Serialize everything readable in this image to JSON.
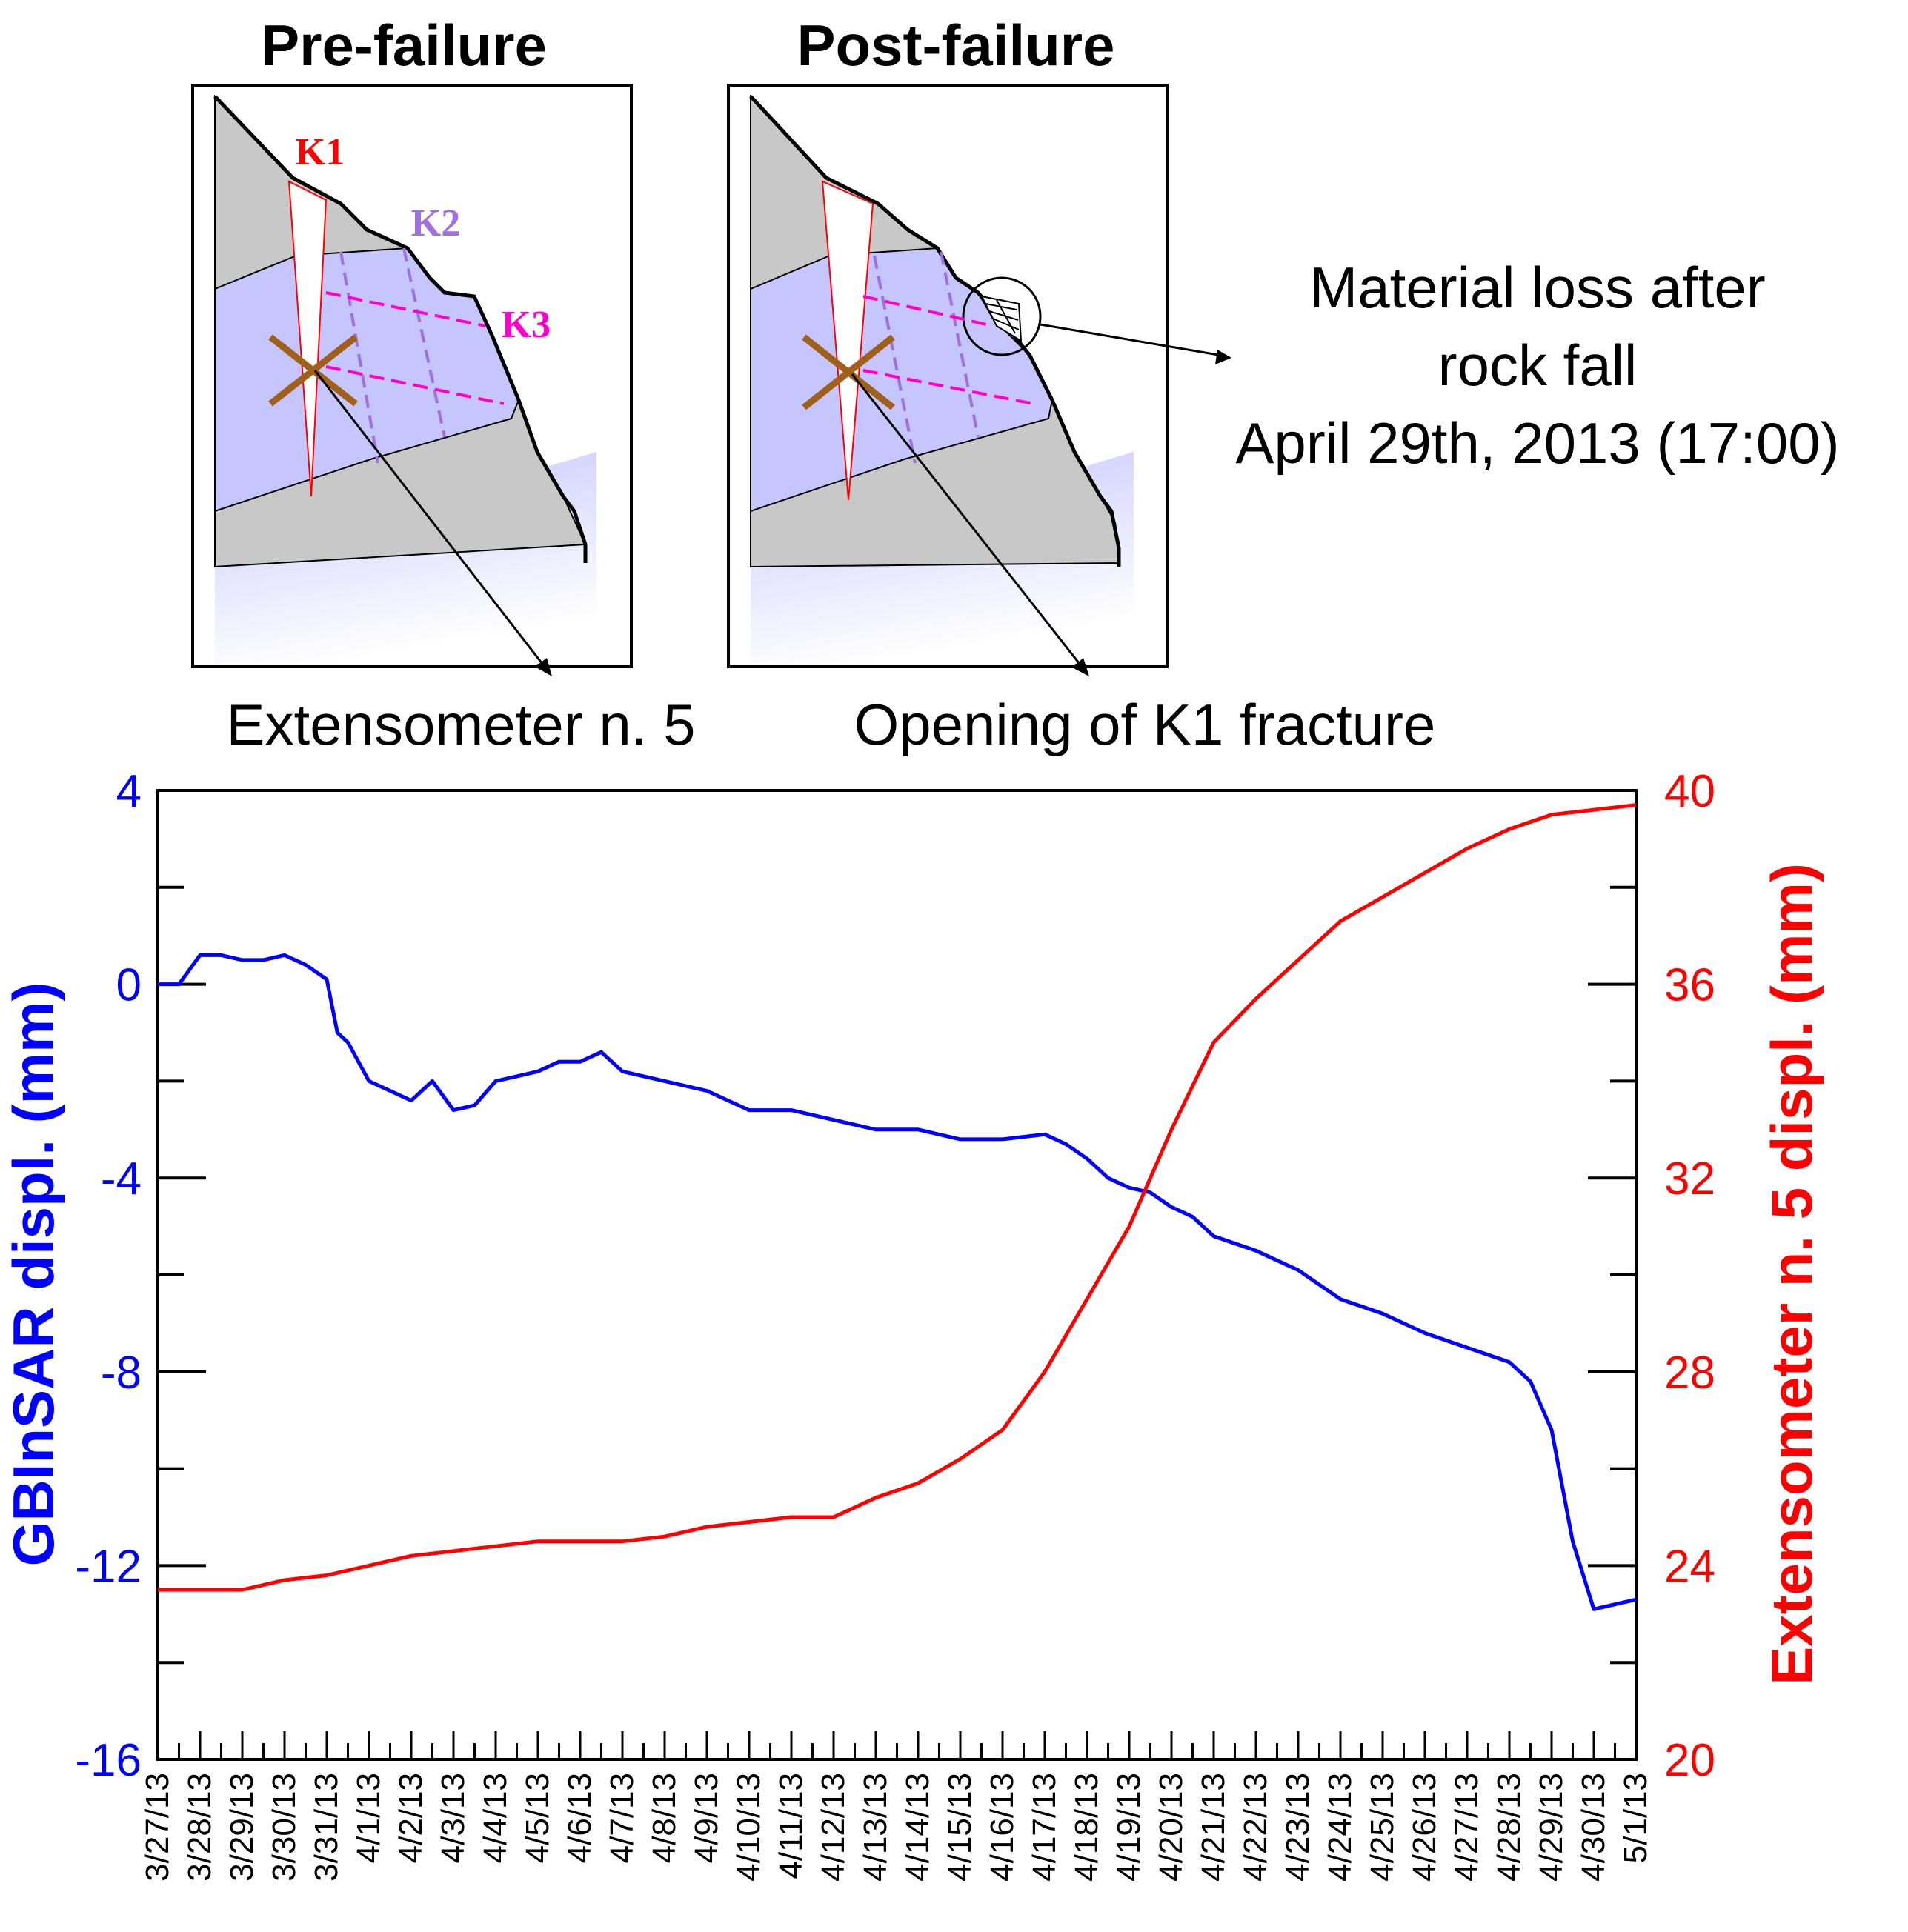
{
  "panels": {
    "pre": {
      "title": "Pre-failure",
      "k1": "K1",
      "k2": "K2",
      "k3": "K3"
    },
    "post": {
      "title": "Post-failure"
    }
  },
  "annotations": {
    "material_loss": [
      "Material loss after",
      "rock fall",
      "April 29th, 2013 (17:00)"
    ],
    "extensometer": "Extensometer n. 5",
    "opening": "Opening of K1 fracture"
  },
  "colors": {
    "left_axis": "#0000ff",
    "right_axis": "#ff0000",
    "k1": "#ff0000",
    "k2": "#a070e0",
    "k3": "#ff00cc",
    "rock_gray": "#c8c8c8",
    "rock_blue": "#c6c6ff",
    "extensometer_marker": "#a0601a"
  },
  "chart_data": {
    "type": "line",
    "x_tick_labels": [
      "3/27/13",
      "3/28/13",
      "3/29/13",
      "3/30/13",
      "3/31/13",
      "4/1/13",
      "4/2/13",
      "4/3/13",
      "4/4/13",
      "4/5/13",
      "4/6/13",
      "4/7/13",
      "4/8/13",
      "4/9/13",
      "4/10/13",
      "4/11/13",
      "4/12/13",
      "4/13/13",
      "4/14/13",
      "4/15/13",
      "4/16/13",
      "4/17/13",
      "4/18/13",
      "4/19/13",
      "4/20/13",
      "4/21/13",
      "4/22/13",
      "4/23/13",
      "4/24/13",
      "4/25/13",
      "4/26/13",
      "4/27/13",
      "4/28/13",
      "4/29/13",
      "4/30/13",
      "5/1/13"
    ],
    "xlim": [
      "3/27/13",
      "5/1/13"
    ],
    "y_left": {
      "label": "GBInSAR displ. (mm)",
      "ylim": [
        -16,
        4
      ],
      "ticks": [
        "-16",
        "-12",
        "-8",
        "-4",
        "0",
        "4"
      ]
    },
    "y_right": {
      "label": "Extensometer n. 5 displ. (mm)",
      "ylim": [
        20,
        40
      ],
      "ticks": [
        "20",
        "24",
        "28",
        "32",
        "36",
        "40"
      ]
    },
    "grid": false,
    "series": [
      {
        "axis": "left",
        "color": "#0000ff",
        "x": [
          "3/27/13",
          "3/27/13 12:00",
          "3/28/13",
          "3/28/13 12:00",
          "3/29/13",
          "3/29/13 12:00",
          "3/30/13",
          "3/30/13 12:00",
          "3/31/13",
          "3/31/13 06:00",
          "3/31/13 12:00",
          "4/1/13",
          "4/1/13 12:00",
          "4/2/13",
          "4/2/13 12:00",
          "4/3/13",
          "4/3/13 12:00",
          "4/4/13",
          "4/4/13 12:00",
          "4/5/13",
          "4/5/13 12:00",
          "4/6/13",
          "4/6/13 12:00",
          "4/7/13",
          "4/8/13",
          "4/9/13",
          "4/10/13",
          "4/11/13",
          "4/12/13",
          "4/13/13",
          "4/14/13",
          "4/15/13",
          "4/16/13",
          "4/17/13",
          "4/17/13 12:00",
          "4/18/13",
          "4/18/13 12:00",
          "4/19/13",
          "4/19/13 12:00",
          "4/20/13",
          "4/20/13 12:00",
          "4/21/13",
          "4/22/13",
          "4/23/13",
          "4/24/13",
          "4/25/13",
          "4/26/13",
          "4/27/13",
          "4/28/13",
          "4/28/13 12:00",
          "4/29/13",
          "4/29/13 12:00",
          "4/30/13",
          "4/30/13 12:00",
          "5/1/13"
        ],
        "y": [
          0.0,
          0.0,
          0.6,
          0.6,
          0.5,
          0.5,
          0.6,
          0.4,
          0.1,
          -1.0,
          -1.2,
          -2.0,
          -2.2,
          -2.4,
          -2.0,
          -2.6,
          -2.5,
          -2.0,
          -1.9,
          -1.8,
          -1.6,
          -1.6,
          -1.4,
          -1.8,
          -2.0,
          -2.2,
          -2.6,
          -2.6,
          -2.8,
          -3.0,
          -3.0,
          -3.2,
          -3.2,
          -3.1,
          -3.3,
          -3.6,
          -4.0,
          -4.2,
          -4.3,
          -4.6,
          -4.8,
          -5.2,
          -5.5,
          -5.9,
          -6.5,
          -6.8,
          -7.2,
          -7.5,
          -7.8,
          -8.2,
          -9.2,
          -11.5,
          -12.9,
          -12.8,
          -12.7
        ]
      },
      {
        "axis": "right",
        "color": "#ff0000",
        "x": [
          "3/27/13",
          "3/28/13",
          "3/29/13",
          "3/30/13",
          "3/31/13",
          "4/1/13",
          "4/2/13",
          "4/3/13",
          "4/4/13",
          "4/5/13",
          "4/6/13",
          "4/7/13",
          "4/8/13",
          "4/9/13",
          "4/10/13",
          "4/11/13",
          "4/12/13",
          "4/13/13",
          "4/14/13",
          "4/15/13",
          "4/16/13",
          "4/17/13",
          "4/18/13",
          "4/19/13",
          "4/20/13",
          "4/21/13",
          "4/22/13",
          "4/23/13",
          "4/24/13",
          "4/25/13",
          "4/26/13",
          "4/27/13",
          "4/28/13",
          "4/29/13",
          "4/30/13",
          "5/1/13"
        ],
        "y": [
          23.5,
          23.5,
          23.5,
          23.7,
          23.8,
          24.0,
          24.2,
          24.3,
          24.4,
          24.5,
          24.5,
          24.5,
          24.6,
          24.8,
          24.9,
          25.0,
          25.0,
          25.4,
          25.7,
          26.2,
          26.8,
          28.0,
          29.5,
          31.0,
          33.0,
          34.8,
          35.7,
          36.5,
          37.3,
          37.8,
          38.3,
          38.8,
          39.2,
          39.5,
          39.6,
          39.7
        ]
      }
    ]
  }
}
